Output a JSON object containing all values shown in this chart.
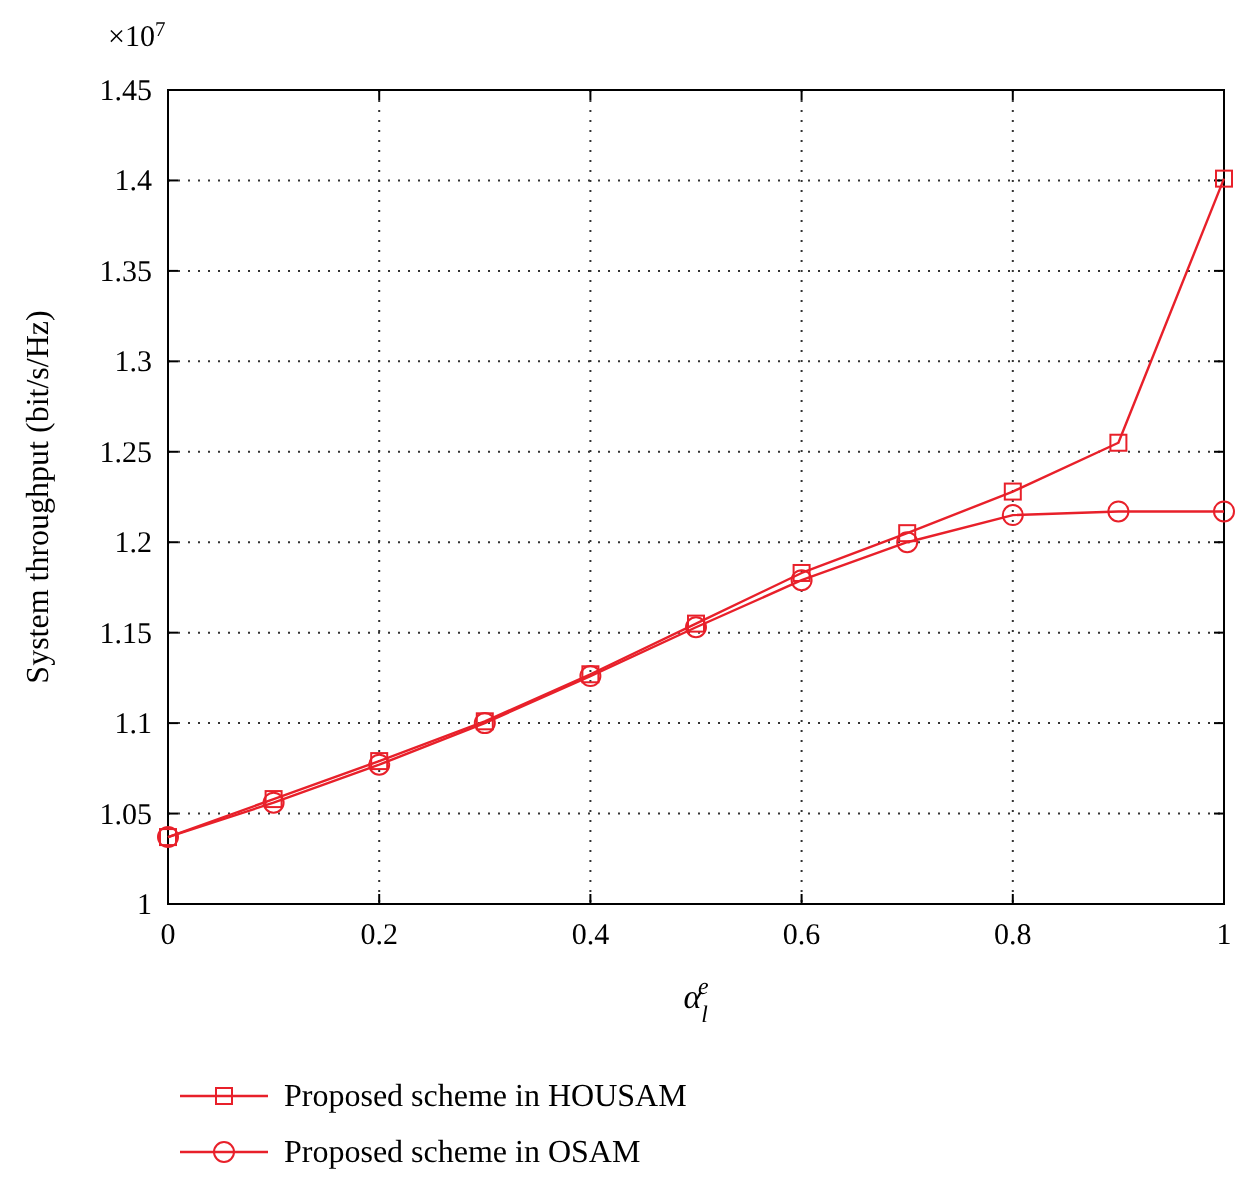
{
  "chart_data": {
    "type": "line",
    "xlabel": "α$_{l}$$^{e}$",
    "ylabel": "System throughput (bit/s/Hz)",
    "annotations": [
      "×10$^{7}$"
    ],
    "x": [
      0,
      0.1,
      0.2,
      0.3,
      0.4,
      0.5,
      0.6,
      0.7,
      0.8,
      0.9,
      1
    ],
    "series": [
      {
        "name": "Proposed scheme in HOUSAM",
        "color": "#e8202a",
        "marker": "square",
        "values": [
          1.037,
          1.058,
          1.079,
          1.101,
          1.127,
          1.155,
          1.183,
          1.205,
          1.228,
          1.255,
          1.401
        ]
      },
      {
        "name": "Proposed scheme in OSAM",
        "color": "#e8202a",
        "marker": "circle",
        "values": [
          1.037,
          1.056,
          1.077,
          1.1,
          1.126,
          1.153,
          1.179,
          1.2,
          1.215,
          1.217,
          1.217
        ]
      }
    ],
    "xlim": [
      0,
      1
    ],
    "xticks": [
      0,
      0.2,
      0.4,
      0.6,
      0.8,
      1
    ],
    "ylim": [
      1,
      1.45
    ],
    "yticks": [
      1,
      1.05,
      1.1,
      1.15,
      1.2,
      1.25,
      1.3,
      1.35,
      1.4,
      1.45
    ],
    "grid": true,
    "legend": "bottom",
    "line_style": "solid"
  }
}
